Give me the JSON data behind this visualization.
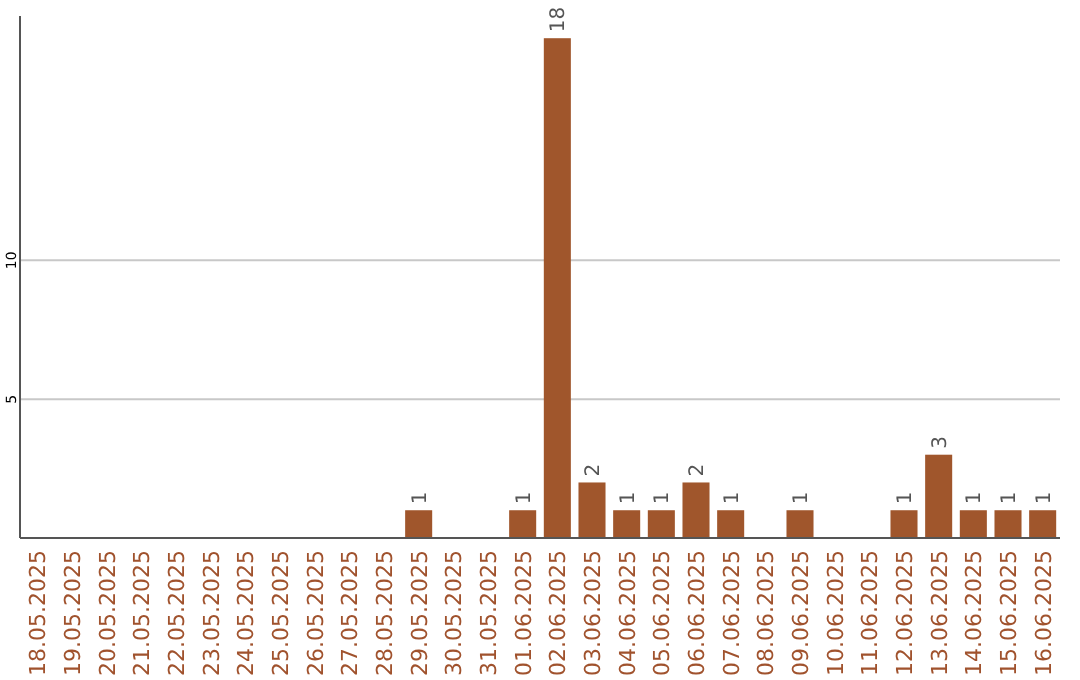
{
  "chart_data": {
    "type": "bar",
    "categories": [
      "18.05.2025",
      "19.05.2025",
      "20.05.2025",
      "21.05.2025",
      "22.05.2025",
      "23.05.2025",
      "24.05.2025",
      "25.05.2025",
      "26.05.2025",
      "27.05.2025",
      "28.05.2025",
      "29.05.2025",
      "30.05.2025",
      "31.05.2025",
      "01.06.2025",
      "02.06.2025",
      "03.06.2025",
      "04.06.2025",
      "05.06.2025",
      "06.06.2025",
      "07.06.2025",
      "08.06.2025",
      "09.06.2025",
      "10.06.2025",
      "11.06.2025",
      "12.06.2025",
      "13.06.2025",
      "14.06.2025",
      "15.06.2025",
      "16.06.2025"
    ],
    "values": [
      0,
      0,
      0,
      0,
      0,
      0,
      0,
      0,
      0,
      0,
      0,
      1,
      0,
      0,
      1,
      18,
      2,
      1,
      1,
      2,
      1,
      0,
      1,
      0,
      0,
      1,
      3,
      1,
      1,
      1
    ],
    "value_labels": [
      null,
      null,
      null,
      null,
      null,
      null,
      null,
      null,
      null,
      null,
      null,
      "1",
      null,
      null,
      "1",
      "18",
      "2",
      "1",
      "1",
      "2",
      "1",
      null,
      "1",
      null,
      null,
      "1",
      "3",
      "1",
      "1",
      "1"
    ],
    "color": "#a0562c",
    "ylim": [
      0,
      18.8
    ],
    "yticks": [
      5,
      10
    ],
    "grid": "y"
  }
}
